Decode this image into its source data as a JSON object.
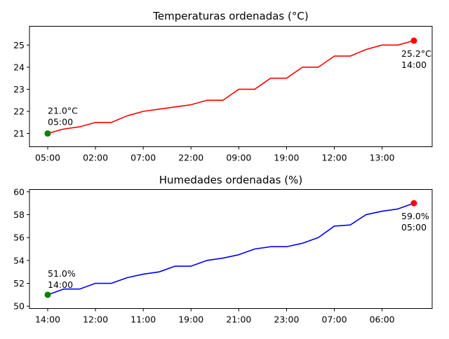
{
  "chart_data": [
    {
      "type": "line",
      "title": "Temperaturas ordenadas (°C)",
      "color": "#ff0000",
      "x_tick_labels": [
        "05:00",
        "02:00",
        "07:00",
        "22:00",
        "09:00",
        "19:00",
        "12:00",
        "13:00"
      ],
      "x_tick_every": 3,
      "values": [
        21.0,
        21.2,
        21.3,
        21.5,
        21.5,
        21.8,
        22.0,
        22.1,
        22.2,
        22.3,
        22.5,
        22.5,
        23.0,
        23.0,
        23.5,
        23.5,
        24.0,
        24.0,
        24.5,
        24.5,
        24.8,
        25.0,
        25.0,
        25.2
      ],
      "ylim": [
        20.4,
        25.85
      ],
      "yticks": [
        21,
        22,
        23,
        24,
        25
      ],
      "min_marker": {
        "color": "#008000",
        "text": "21.0°C",
        "time": "05:00"
      },
      "max_marker": {
        "color": "#ff0000",
        "text": "25.2°C",
        "time": "14:00"
      }
    },
    {
      "type": "line",
      "title": "Humedades ordenadas (%)",
      "color": "#0000ff",
      "x_tick_labels": [
        "14:00",
        "12:00",
        "11:00",
        "19:00",
        "21:00",
        "23:00",
        "07:00",
        "06:00"
      ],
      "x_tick_every": 3,
      "values": [
        51.0,
        51.5,
        51.5,
        52.0,
        52.0,
        52.5,
        52.8,
        53.0,
        53.5,
        53.5,
        54.0,
        54.2,
        54.5,
        55.0,
        55.2,
        55.2,
        55.5,
        56.0,
        57.0,
        57.1,
        58.0,
        58.3,
        58.5,
        59.0
      ],
      "ylim": [
        49.8,
        60.2
      ],
      "yticks": [
        50,
        52,
        54,
        56,
        58,
        60
      ],
      "min_marker": {
        "color": "#008000",
        "text": "51.0%",
        "time": "14:00"
      },
      "max_marker": {
        "color": "#ff0000",
        "text": "59.0%",
        "time": "05:00"
      }
    }
  ]
}
